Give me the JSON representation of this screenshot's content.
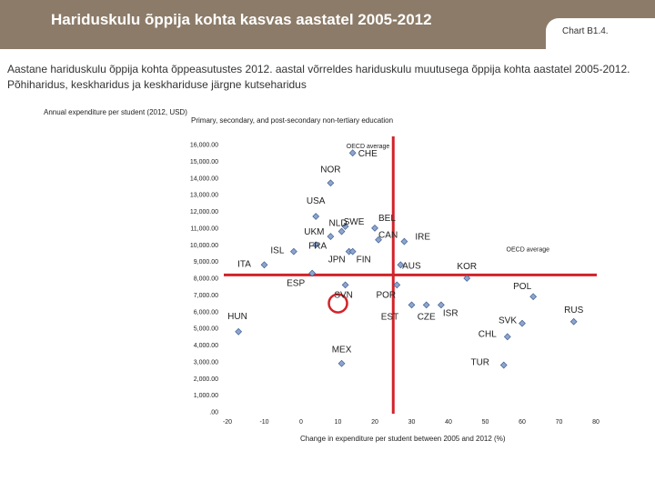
{
  "header": {
    "title": "Hariduskulu õppija kohta kasvas aastatel 2005-2012",
    "chart_ref": "Chart B1.4."
  },
  "description": {
    "line1": "Aastane hariduskulu õppija kohta õppeasutustes 2012. aastal võrreldes hariduskulu muutusega õppija kohta aastatel 2005-2012.",
    "line2": "Põhiharidus, keskharidus ja keskhariduse järgne kutseharidus"
  },
  "colors": {
    "header": "#8c7b68",
    "marker": "#8ea5cc",
    "marker_stroke": "#3f5f95",
    "reference": "#d2232a"
  },
  "chart_data": {
    "type": "scatter",
    "title": "Primary, secondary, and post-secondary non-tertiary education",
    "ylabel": "Annual expenditure per student (2012, USD)",
    "xlabel": "Change in expenditure per student between 2005 and 2012 (%)",
    "xlim": [
      -20,
      80
    ],
    "ylim": [
      0,
      16000
    ],
    "x_ticks": [
      "-20",
      "-10",
      "0",
      "10",
      "20",
      "30",
      "40",
      "50",
      "60",
      "70",
      "80"
    ],
    "y_ticks": [
      ".00",
      "1,000.00",
      "2,000.00",
      "3,000.00",
      "4,000.00",
      "5,000.00",
      "6,000.00",
      "7,000.00",
      "8,000.00",
      "9,000.00",
      "10,000.00",
      "11,000.00",
      "12,000.00",
      "13,000.00",
      "14,000.00",
      "15,000.00",
      "16,000.00"
    ],
    "reference_lines": {
      "oecd_x": 25,
      "oecd_y": 8200,
      "label_x": "OECD average",
      "label_y": "OECD average"
    },
    "points": [
      {
        "label": "CHE",
        "x": 14,
        "y": 15500
      },
      {
        "label": "NOR",
        "x": 8,
        "y": 13700
      },
      {
        "label": "USA",
        "x": 4,
        "y": 11700
      },
      {
        "label": "SWE",
        "x": 12,
        "y": 11100
      },
      {
        "label": "NLD",
        "x": 11,
        "y": 10800
      },
      {
        "label": "UKM",
        "x": 8,
        "y": 10500
      },
      {
        "label": "FRA",
        "x": 4,
        "y": 10000
      },
      {
        "label": "ISL",
        "x": -2,
        "y": 9600
      },
      {
        "label": "ITA",
        "x": -10,
        "y": 8800
      },
      {
        "label": "BEL",
        "x": 20,
        "y": 11000
      },
      {
        "label": "CAN",
        "x": 21,
        "y": 10300
      },
      {
        "label": "IRE",
        "x": 28,
        "y": 10200
      },
      {
        "label": "JPN",
        "x": 13,
        "y": 9600
      },
      {
        "label": "FIN",
        "x": 14,
        "y": 9600
      },
      {
        "label": "AUS",
        "x": 27,
        "y": 8800
      },
      {
        "label": "KOR",
        "x": 45,
        "y": 8000
      },
      {
        "label": "ESP",
        "x": 3,
        "y": 8300
      },
      {
        "label": "SVN",
        "x": 12,
        "y": 7600
      },
      {
        "label": "POR",
        "x": 26,
        "y": 7600
      },
      {
        "label": "POL",
        "x": 63,
        "y": 6900
      },
      {
        "label": "EST",
        "x": 30,
        "y": 6400
      },
      {
        "label": "CZE",
        "x": 34,
        "y": 6400
      },
      {
        "label": "ISR",
        "x": 38,
        "y": 6400
      },
      {
        "label": "RUS",
        "x": 74,
        "y": 5400
      },
      {
        "label": "HUN",
        "x": -17,
        "y": 4800
      },
      {
        "label": "SVK",
        "x": 60,
        "y": 5300
      },
      {
        "label": "CHL",
        "x": 56,
        "y": 4500
      },
      {
        "label": "MEX",
        "x": 11,
        "y": 2900
      },
      {
        "label": "TUR",
        "x": 55,
        "y": 2800
      }
    ],
    "highlight": {
      "x": 10,
      "y": 6500
    },
    "grid": false,
    "legend": "none"
  }
}
